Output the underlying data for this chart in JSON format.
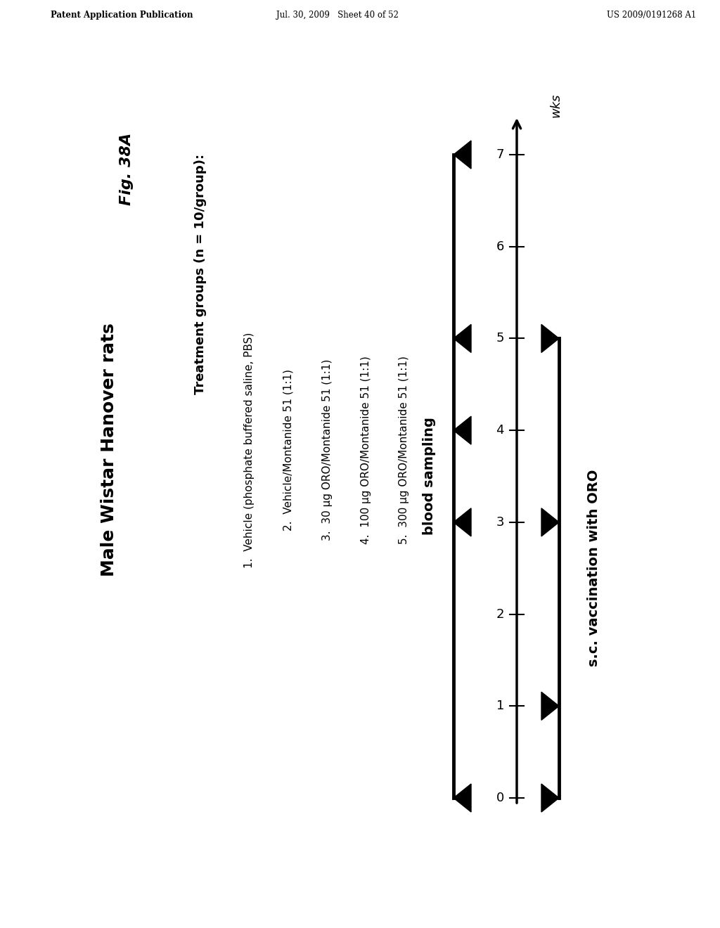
{
  "header_left": "Patent Application Publication",
  "header_mid": "Jul. 30, 2009   Sheet 40 of 52",
  "header_right": "US 2009/0191268 A1",
  "fig_label": "Fig. 38A",
  "title": "Male Wistar Hanover rats",
  "treatment_header": "Treatment groups (n = 10/group):",
  "treatment_items": [
    "1.  Vehicle (phosphate buffered saline, PBS)",
    "2.  Vehicle/Montanide 51 (1:1)",
    "3.  30 μg ORO/Montanide 51 (1:1)",
    "4.  100 μg ORO/Montanide 51 (1:1)",
    "5.  300 μg ORO/Montanide 51 (1:1)"
  ],
  "timeline_label": "wks",
  "blood_sampling_label": "blood sampling",
  "vaccination_label": "s.c. vaccination with ORO",
  "week_ticks": [
    0,
    1,
    2,
    3,
    4,
    5,
    6,
    7
  ],
  "blood_sampling_weeks": [
    0,
    3,
    4,
    5,
    7
  ],
  "vaccination_weeks": [
    0,
    1,
    3,
    5
  ],
  "background_color": "#ffffff",
  "text_color": "#000000",
  "line_color": "#000000",
  "text_rotation": 90,
  "fig_width": 10.24,
  "fig_height": 13.2
}
